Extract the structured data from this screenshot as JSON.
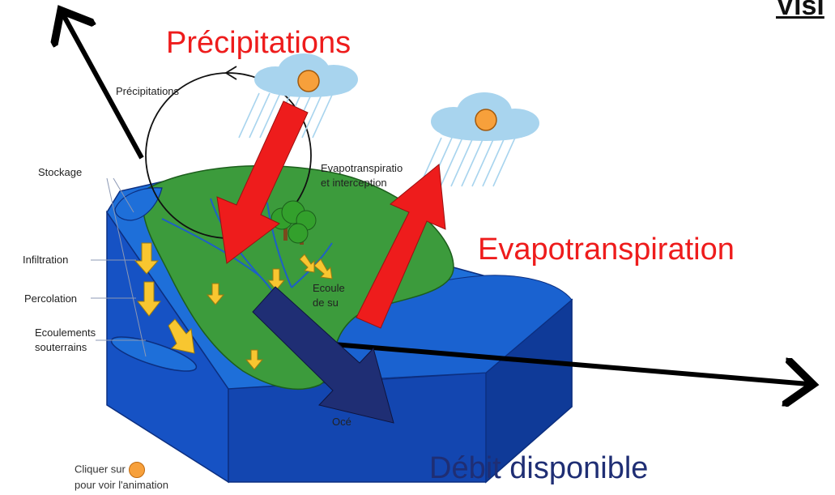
{
  "heading_partial": "Visi",
  "big_labels": {
    "precipitations": "Précipitations",
    "evapotranspiration": "Evapotranspiration",
    "debit": "Débit disponible"
  },
  "diagram_labels": {
    "precipitations": "Précipitations",
    "stockage": "Stockage",
    "evapo_line1": "Evapotranspiratio",
    "evapo_line2": "et interception",
    "infiltration": "Infiltration",
    "percolation": "Percolation",
    "ecoulements_line1": "Ecoulements",
    "ecoulements_line2": "souterrains",
    "surface_line1": "Ecoule",
    "surface_line2": "de su",
    "ocean": "Océ"
  },
  "animation_hint": {
    "line1": "Cliquer sur",
    "line2": "pour voir l'animation"
  },
  "colors": {
    "red_arrow": "#ee1c1c",
    "dark_blue_arrow": "#1f2e74",
    "water_blue": "#1e6fd9",
    "land_green": "#3c9b3c",
    "yellow_arrow": "#f8c630",
    "sun_orange": "#f7a03b",
    "cloud": "#a8d4ee"
  }
}
